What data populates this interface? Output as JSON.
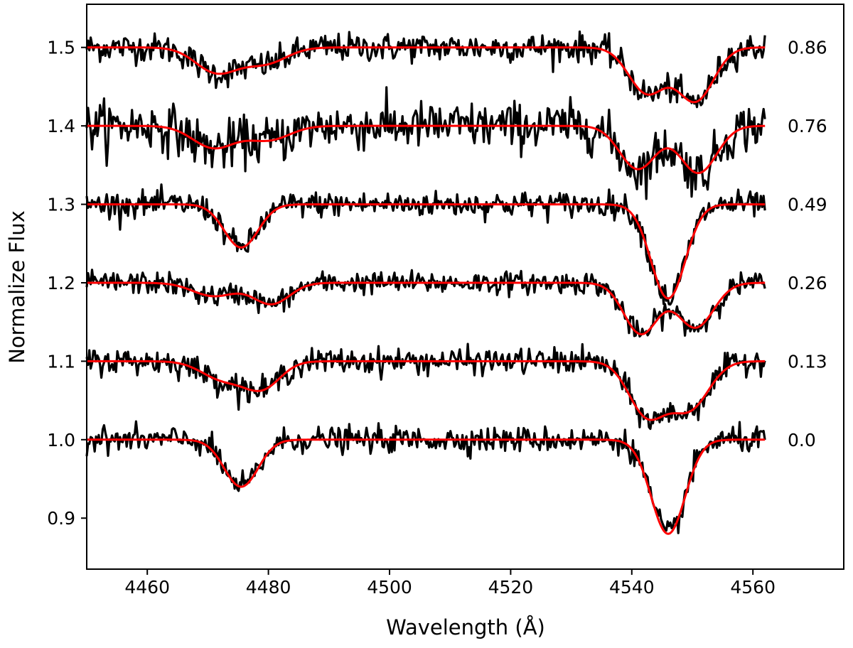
{
  "chart_data": {
    "type": "line",
    "title": "",
    "xlabel": "Wavelength (Å)",
    "ylabel": "Normalize Flux",
    "xlim": [
      4450,
      4575
    ],
    "ylim": [
      0.835,
      1.555
    ],
    "x_ticks": [
      4460,
      4480,
      4500,
      4520,
      4540,
      4560
    ],
    "y_ticks": [
      0.9,
      1.0,
      1.1,
      1.2,
      1.3,
      1.4,
      1.5
    ],
    "x_tick_labels": [
      "4460",
      "4480",
      "4500",
      "4520",
      "4540",
      "4560"
    ],
    "y_tick_labels": [
      "0.9",
      "1.0",
      "1.1",
      "1.2",
      "1.3",
      "1.4",
      "1.5"
    ],
    "grid": false,
    "legend": "none",
    "series_colors": {
      "observed": "#000000",
      "model": "#ff0000"
    },
    "x_range": [
      4450,
      4562
    ],
    "spectra": [
      {
        "phase": "0.86",
        "offset": 1.5,
        "noise": 0.009,
        "lines": [
          {
            "center": 4471.5,
            "depth": 0.032,
            "halfwidth": 3.5
          },
          {
            "center": 4479.5,
            "depth": 0.02,
            "halfwidth": 3.5
          },
          {
            "center": 4542.5,
            "depth": 0.058,
            "halfwidth": 3.0
          },
          {
            "center": 4550.5,
            "depth": 0.068,
            "halfwidth": 3.0
          }
        ]
      },
      {
        "phase": "0.76",
        "offset": 1.4,
        "noise": 0.015,
        "lines": [
          {
            "center": 4471.0,
            "depth": 0.028,
            "halfwidth": 3.5
          },
          {
            "center": 4480.0,
            "depth": 0.018,
            "halfwidth": 3.5
          },
          {
            "center": 4541.0,
            "depth": 0.055,
            "halfwidth": 3.0
          },
          {
            "center": 4551.0,
            "depth": 0.06,
            "halfwidth": 3.0
          }
        ]
      },
      {
        "phase": "0.49",
        "offset": 1.3,
        "noise": 0.008,
        "lines": [
          {
            "center": 4475.5,
            "depth": 0.055,
            "halfwidth": 2.8
          },
          {
            "center": 4546.0,
            "depth": 0.12,
            "halfwidth": 2.8
          }
        ]
      },
      {
        "phase": "0.26",
        "offset": 1.2,
        "noise": 0.007,
        "lines": [
          {
            "center": 4471.0,
            "depth": 0.017,
            "halfwidth": 3.5
          },
          {
            "center": 4480.5,
            "depth": 0.027,
            "halfwidth": 3.0
          },
          {
            "center": 4541.5,
            "depth": 0.065,
            "halfwidth": 2.8
          },
          {
            "center": 4550.5,
            "depth": 0.057,
            "halfwidth": 3.0
          }
        ]
      },
      {
        "phase": "0.13",
        "offset": 1.1,
        "noise": 0.008,
        "lines": [
          {
            "center": 4472.5,
            "depth": 0.023,
            "halfwidth": 3.5
          },
          {
            "center": 4479.0,
            "depth": 0.033,
            "halfwidth": 3.0
          },
          {
            "center": 4542.5,
            "depth": 0.068,
            "halfwidth": 3.0
          },
          {
            "center": 4549.5,
            "depth": 0.06,
            "halfwidth": 3.2
          }
        ]
      },
      {
        "phase": "0.0",
        "offset": 1.0,
        "noise": 0.008,
        "lines": [
          {
            "center": 4475.5,
            "depth": 0.06,
            "halfwidth": 2.8
          },
          {
            "center": 4546.0,
            "depth": 0.12,
            "halfwidth": 2.8
          }
        ]
      }
    ]
  }
}
